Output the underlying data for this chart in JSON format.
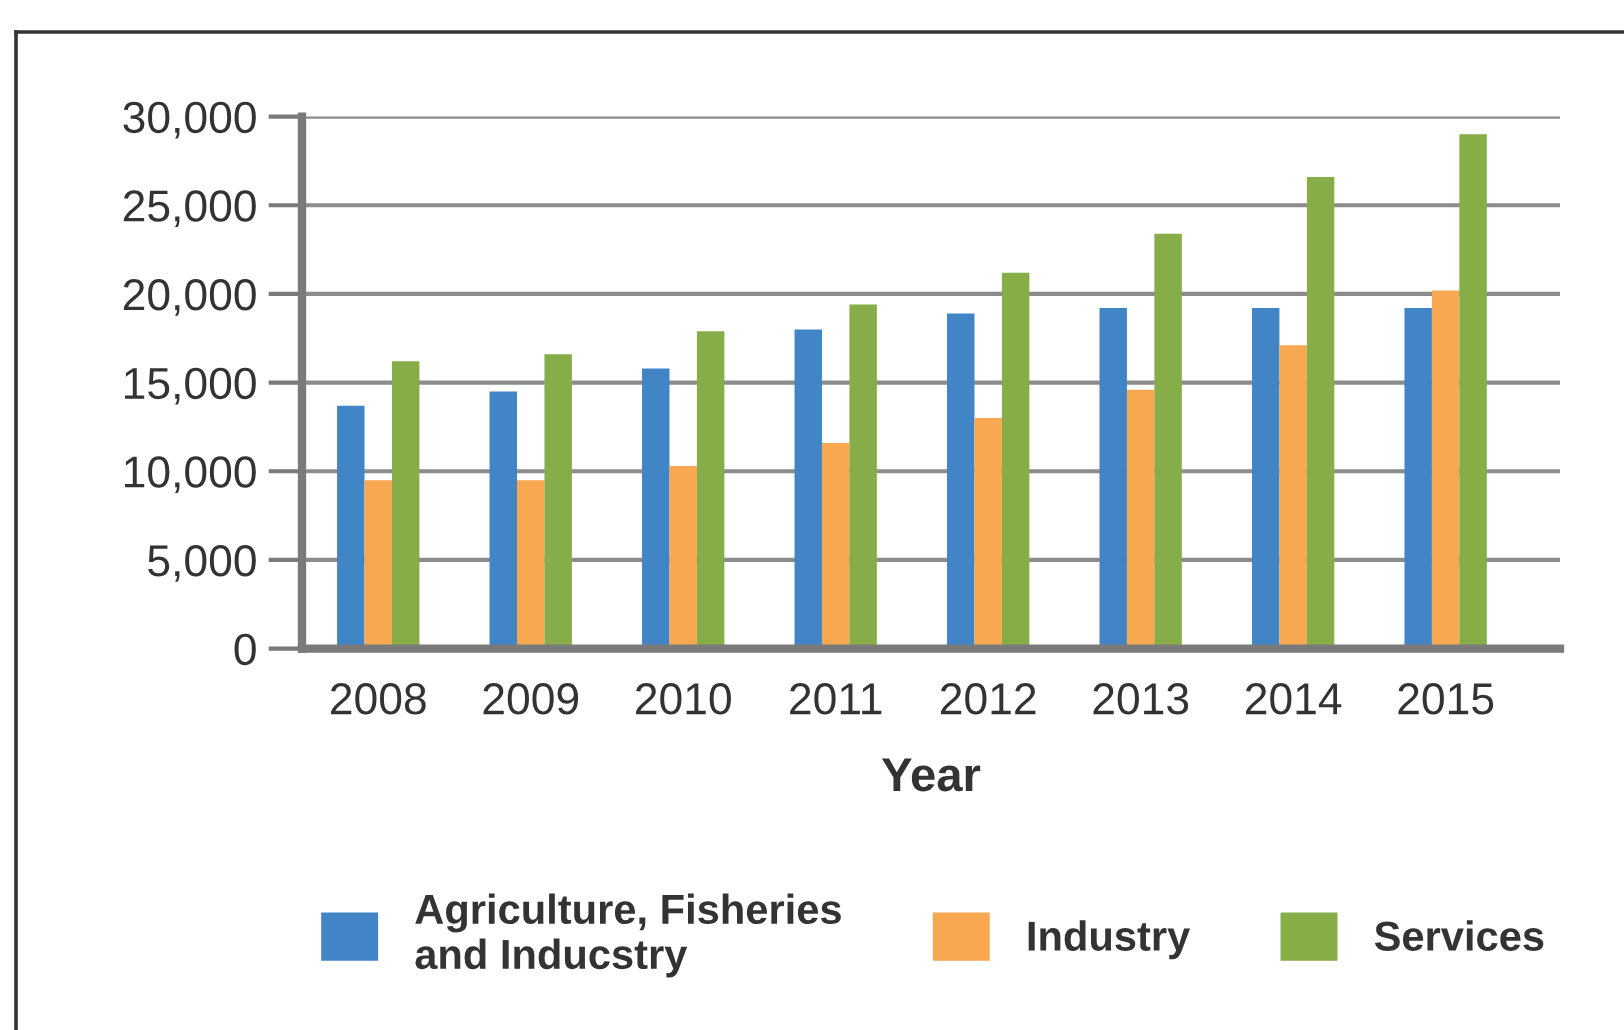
{
  "chart_data": {
    "type": "bar",
    "xlabel": "Year",
    "categories": [
      "2008",
      "2009",
      "2010",
      "2011",
      "2012",
      "2013",
      "2014",
      "2015"
    ],
    "series": [
      {
        "name": "Agriculture, Fisheries\nand Inducstry",
        "color": "#4285c6",
        "values": [
          13700,
          14500,
          15800,
          18000,
          18900,
          19200,
          19200,
          19200
        ]
      },
      {
        "name": "Industry",
        "color": "#f9a852",
        "values": [
          9500,
          9500,
          10300,
          11600,
          13000,
          14600,
          17100,
          20200
        ]
      },
      {
        "name": "Services",
        "color": "#86ad48",
        "values": [
          16200,
          16600,
          17900,
          19400,
          21200,
          23400,
          26600,
          29000
        ]
      }
    ],
    "ylim": [
      0,
      30000
    ],
    "yticks": [
      0,
      {
        "value": 5000,
        "label": "5,000"
      },
      {
        "value": 10000,
        "label": "10,000"
      },
      {
        "value": 15000,
        "label": "15,000"
      },
      {
        "value": 20000,
        "label": "20,000"
      },
      {
        "value": 25000,
        "label": "25,000"
      },
      {
        "value": 30000,
        "label": "30,000"
      }
    ],
    "grid": "y",
    "legend": "bottom"
  }
}
